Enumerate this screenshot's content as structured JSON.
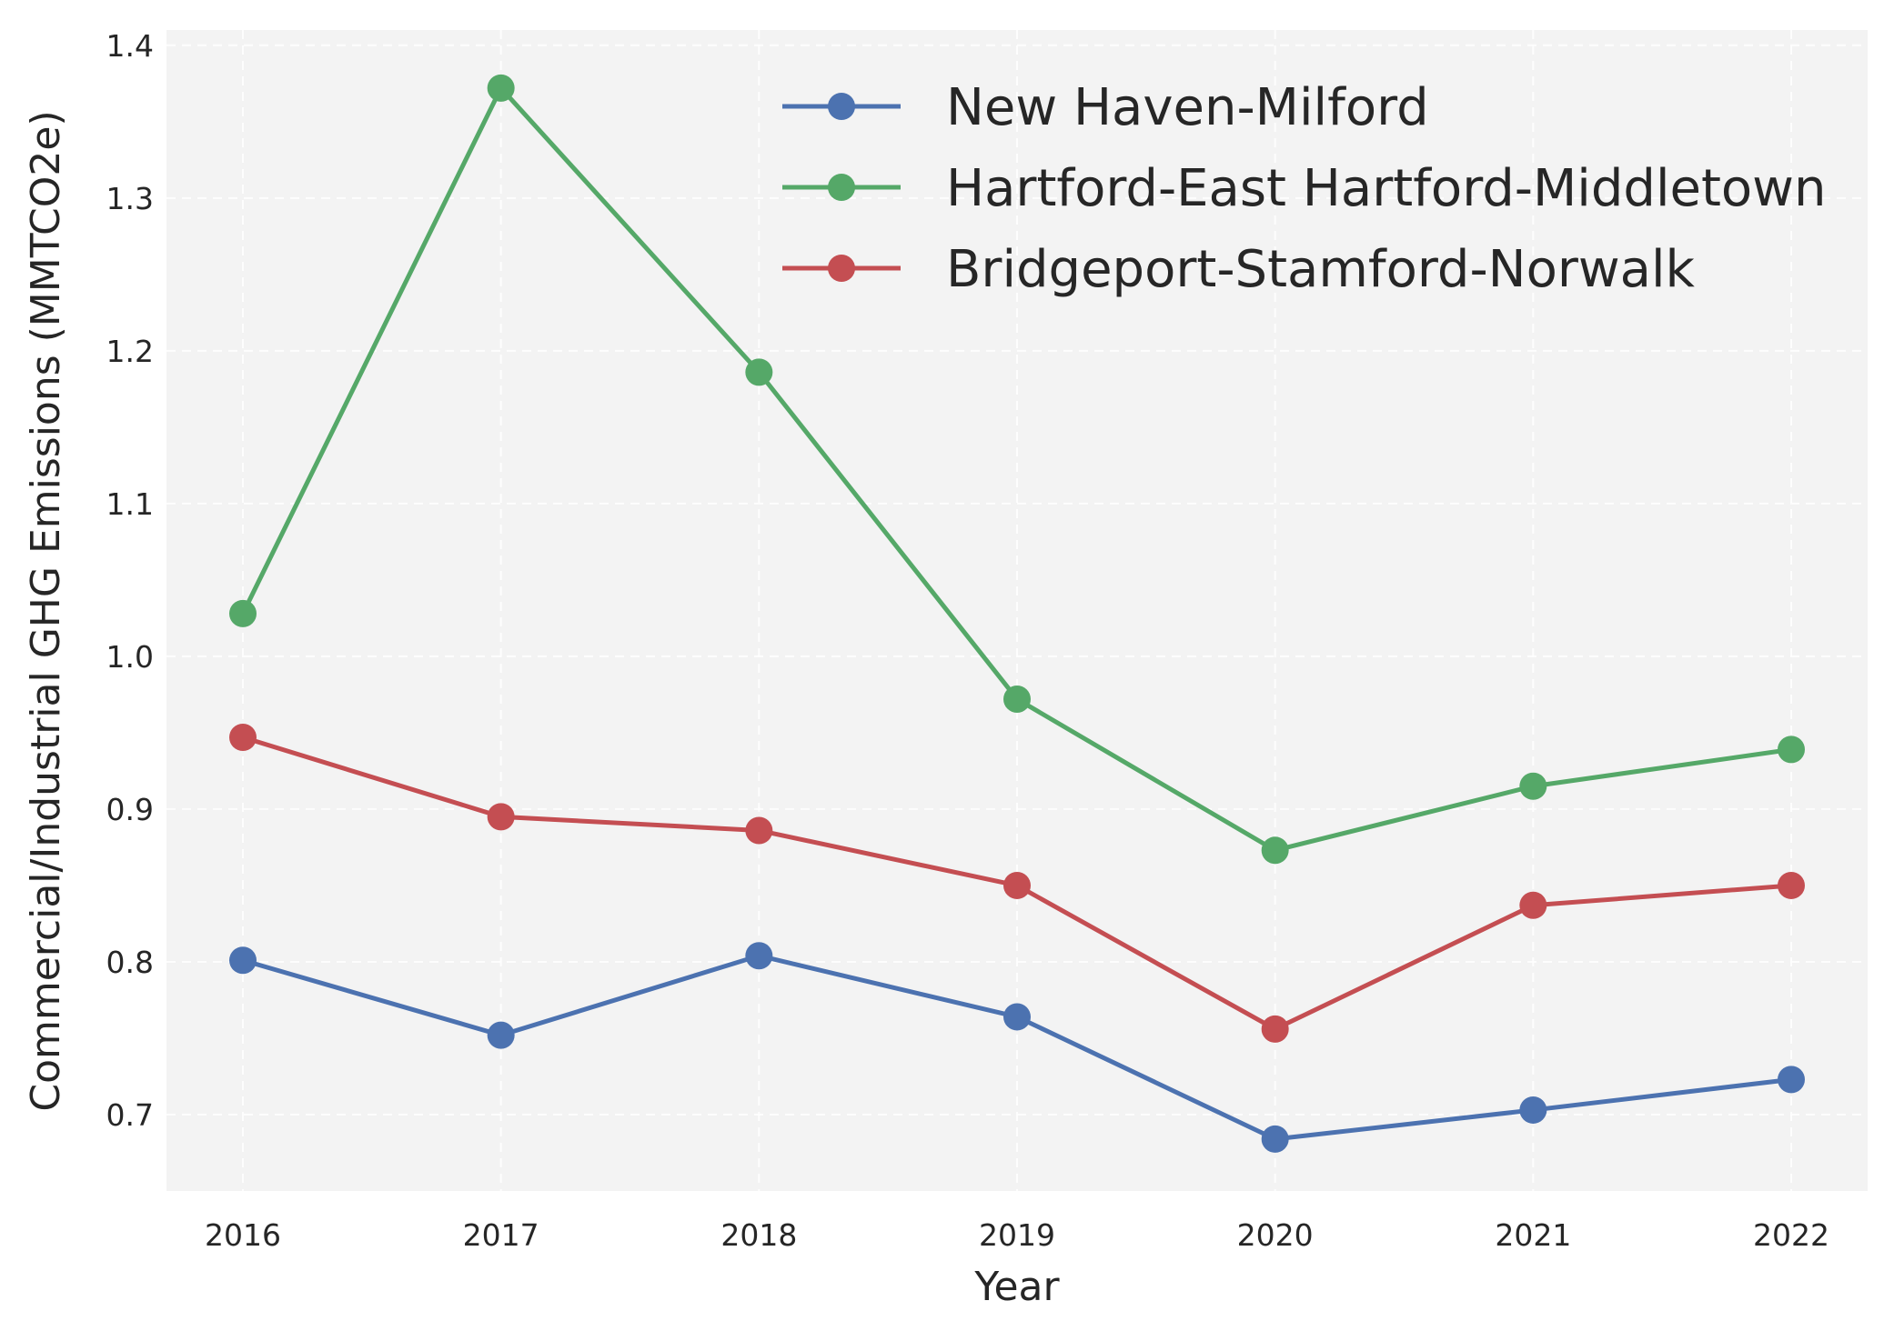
{
  "chart_data": {
    "type": "line",
    "xlabel": "Year",
    "ylabel": "Commercial/Industrial GHG Emissions (MMTCO2e)",
    "categories": [
      "2016",
      "2017",
      "2018",
      "2019",
      "2020",
      "2021",
      "2022"
    ],
    "ylim": [
      0.65,
      1.41
    ],
    "yticks": [
      "0.7",
      "0.8",
      "0.9",
      "1.0",
      "1.1",
      "1.2",
      "1.3",
      "1.4"
    ],
    "grid": true,
    "legend_position": "top-right",
    "series": [
      {
        "name": "New Haven-Milford",
        "color": "#4c72b0",
        "values": [
          0.801,
          0.752,
          0.804,
          0.764,
          0.684,
          0.703,
          0.723
        ]
      },
      {
        "name": "Hartford-East Hartford-Middletown",
        "color": "#55a868",
        "values": [
          1.028,
          1.372,
          1.186,
          0.972,
          0.873,
          0.915,
          0.939
        ]
      },
      {
        "name": "Bridgeport-Stamford-Norwalk",
        "color": "#c44e52",
        "values": [
          0.947,
          0.895,
          0.886,
          0.85,
          0.756,
          0.837,
          0.85
        ]
      }
    ],
    "background_color": "#f3f3f3"
  }
}
